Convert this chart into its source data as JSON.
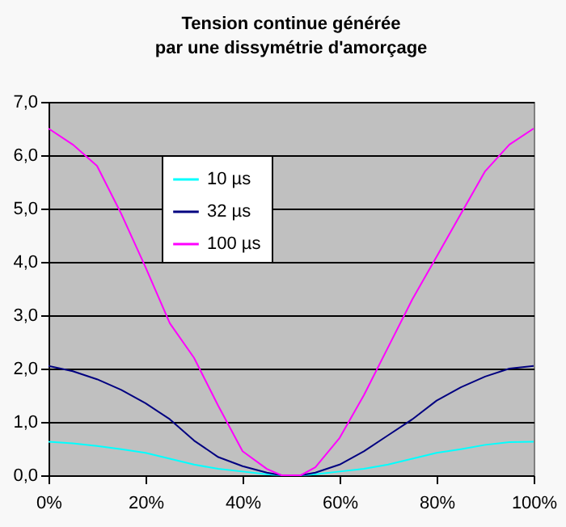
{
  "chart_data": {
    "type": "line",
    "title": "Tension continue générée\npar une dissymétrie d'amorçage",
    "x": [
      0,
      5,
      10,
      15,
      20,
      25,
      30,
      35,
      40,
      45,
      48,
      52,
      55,
      60,
      65,
      70,
      75,
      80,
      85,
      90,
      95,
      100
    ],
    "series": [
      {
        "name": "10 µs",
        "color": "#00ffff",
        "values": [
          0.63,
          0.6,
          0.55,
          0.49,
          0.42,
          0.31,
          0.2,
          0.12,
          0.07,
          0.02,
          0,
          0,
          0.02,
          0.07,
          0.12,
          0.2,
          0.31,
          0.42,
          0.49,
          0.57,
          0.62,
          0.63
        ]
      },
      {
        "name": "32 µs",
        "color": "#000080",
        "values": [
          2.05,
          1.95,
          1.8,
          1.6,
          1.35,
          1.05,
          0.65,
          0.34,
          0.17,
          0.05,
          0,
          0,
          0.05,
          0.2,
          0.45,
          0.75,
          1.05,
          1.4,
          1.65,
          1.85,
          2.0,
          2.05
        ]
      },
      {
        "name": "100 µs",
        "color": "#ff00ff",
        "values": [
          6.5,
          6.2,
          5.8,
          4.9,
          3.9,
          2.85,
          2.2,
          1.3,
          0.45,
          0.12,
          0,
          0,
          0.15,
          0.7,
          1.5,
          2.4,
          3.3,
          4.1,
          4.9,
          5.7,
          6.2,
          6.5
        ]
      }
    ],
    "xlim": [
      0,
      100
    ],
    "xticks": [
      {
        "value": 0,
        "label": "0%"
      },
      {
        "value": 20,
        "label": "20%"
      },
      {
        "value": 40,
        "label": "40%"
      },
      {
        "value": 60,
        "label": "60%"
      },
      {
        "value": 80,
        "label": "80%"
      },
      {
        "value": 100,
        "label": "100%"
      }
    ],
    "ylim": [
      0,
      7
    ],
    "yticks": [
      {
        "value": 0,
        "label": "0,0"
      },
      {
        "value": 1,
        "label": "1,0"
      },
      {
        "value": 2,
        "label": "2,0"
      },
      {
        "value": 3,
        "label": "3,0"
      },
      {
        "value": 4,
        "label": "4,0"
      },
      {
        "value": 5,
        "label": "5,0"
      },
      {
        "value": 6,
        "label": "6,0"
      },
      {
        "value": 7,
        "label": "7,0"
      }
    ],
    "grid": "y",
    "legend": "top left",
    "marker": "none",
    "line_style": "solid"
  }
}
